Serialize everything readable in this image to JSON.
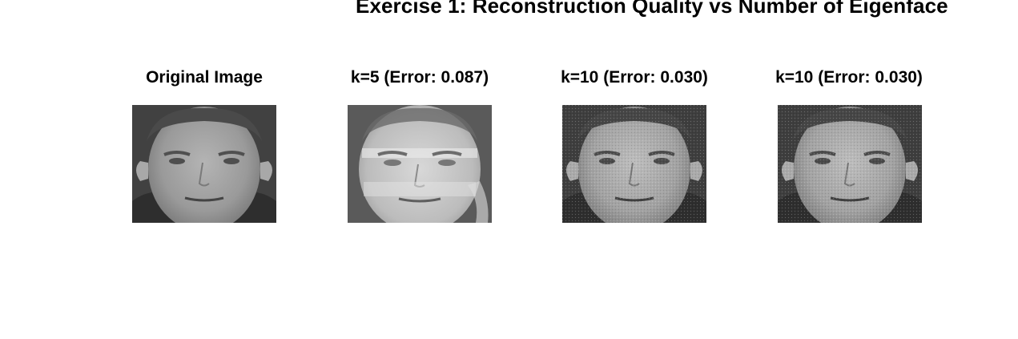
{
  "figure": {
    "title": "Exercise 1: Reconstruction Quality vs Number of Eigenface"
  },
  "panels": [
    {
      "title": "Original Image",
      "variant": "original"
    },
    {
      "title": "k=5 (Error: 0.087)",
      "variant": "blurry"
    },
    {
      "title": "k=10 (Error: 0.030)",
      "variant": "grainy"
    },
    {
      "title": "k=10 (Error: 0.030)",
      "variant": "grainy"
    }
  ],
  "colors": {
    "background": "#ffffff",
    "text": "#000000"
  }
}
